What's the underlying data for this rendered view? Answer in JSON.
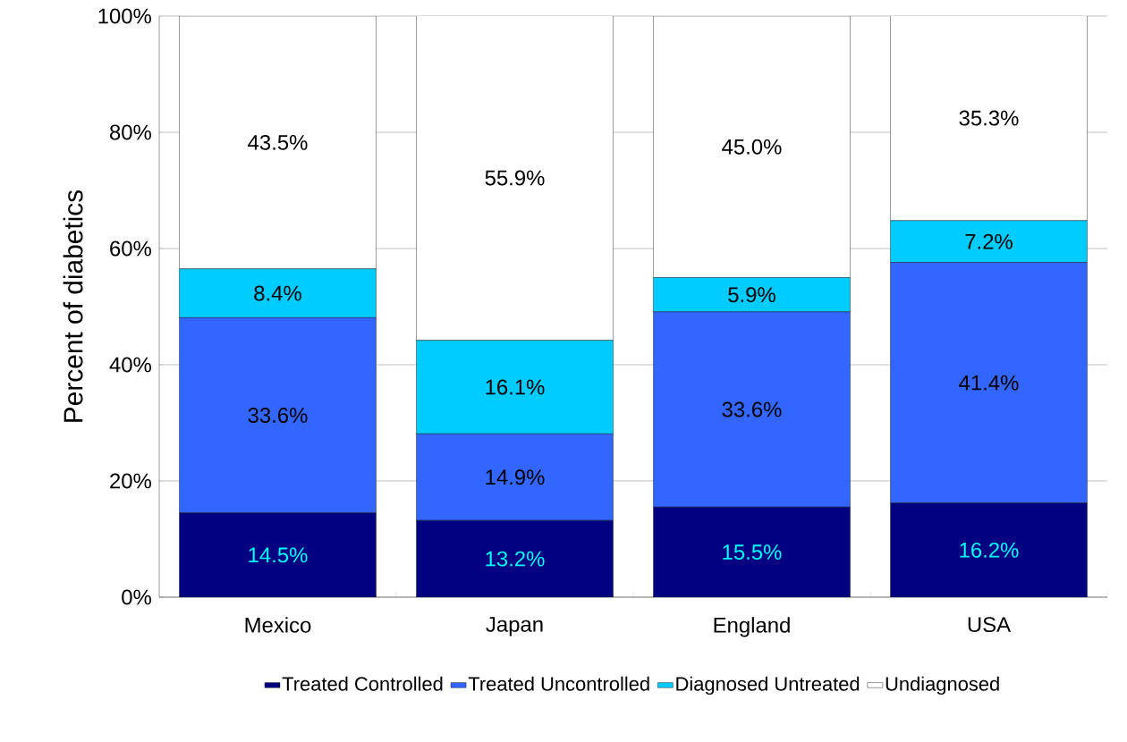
{
  "chart_data": {
    "type": "bar",
    "stacked": true,
    "ylabel": "Percent of diabetics",
    "categories": [
      "Mexico",
      "Japan",
      "England",
      "USA"
    ],
    "series": [
      {
        "name": "Treated Controlled",
        "color": "#000080",
        "values": [
          14.5,
          13.2,
          15.5,
          16.2
        ],
        "value_labels": [
          "14.5%",
          "13.2%",
          "15.5%",
          "16.2%"
        ]
      },
      {
        "name": "Treated Uncontrolled",
        "color": "#3366ff",
        "values": [
          33.6,
          14.9,
          33.6,
          41.4
        ],
        "value_labels": [
          "33.6%",
          "14.9%",
          "33.6%",
          "41.4%"
        ]
      },
      {
        "name": "Diagnosed Untreated",
        "color": "#00ccff",
        "values": [
          8.4,
          16.1,
          5.9,
          7.2
        ],
        "value_labels": [
          "8.4%",
          "16.1%",
          "5.9%",
          "7.2%"
        ]
      },
      {
        "name": "Undiagnosed",
        "color": "#ffffff",
        "values": [
          43.5,
          55.9,
          45.0,
          35.3
        ],
        "value_labels": [
          "43.5%",
          "55.9%",
          "45.0%",
          "35.3%"
        ]
      }
    ],
    "ylim": [
      0,
      100
    ],
    "yticks": [
      {
        "value": 0,
        "label": "0%"
      },
      {
        "value": 20,
        "label": "20%"
      },
      {
        "value": 40,
        "label": "40%"
      },
      {
        "value": 60,
        "label": "60%"
      },
      {
        "value": 80,
        "label": "80%"
      },
      {
        "value": 100,
        "label": "100%"
      }
    ],
    "grid": "y",
    "legend": "bottom"
  }
}
